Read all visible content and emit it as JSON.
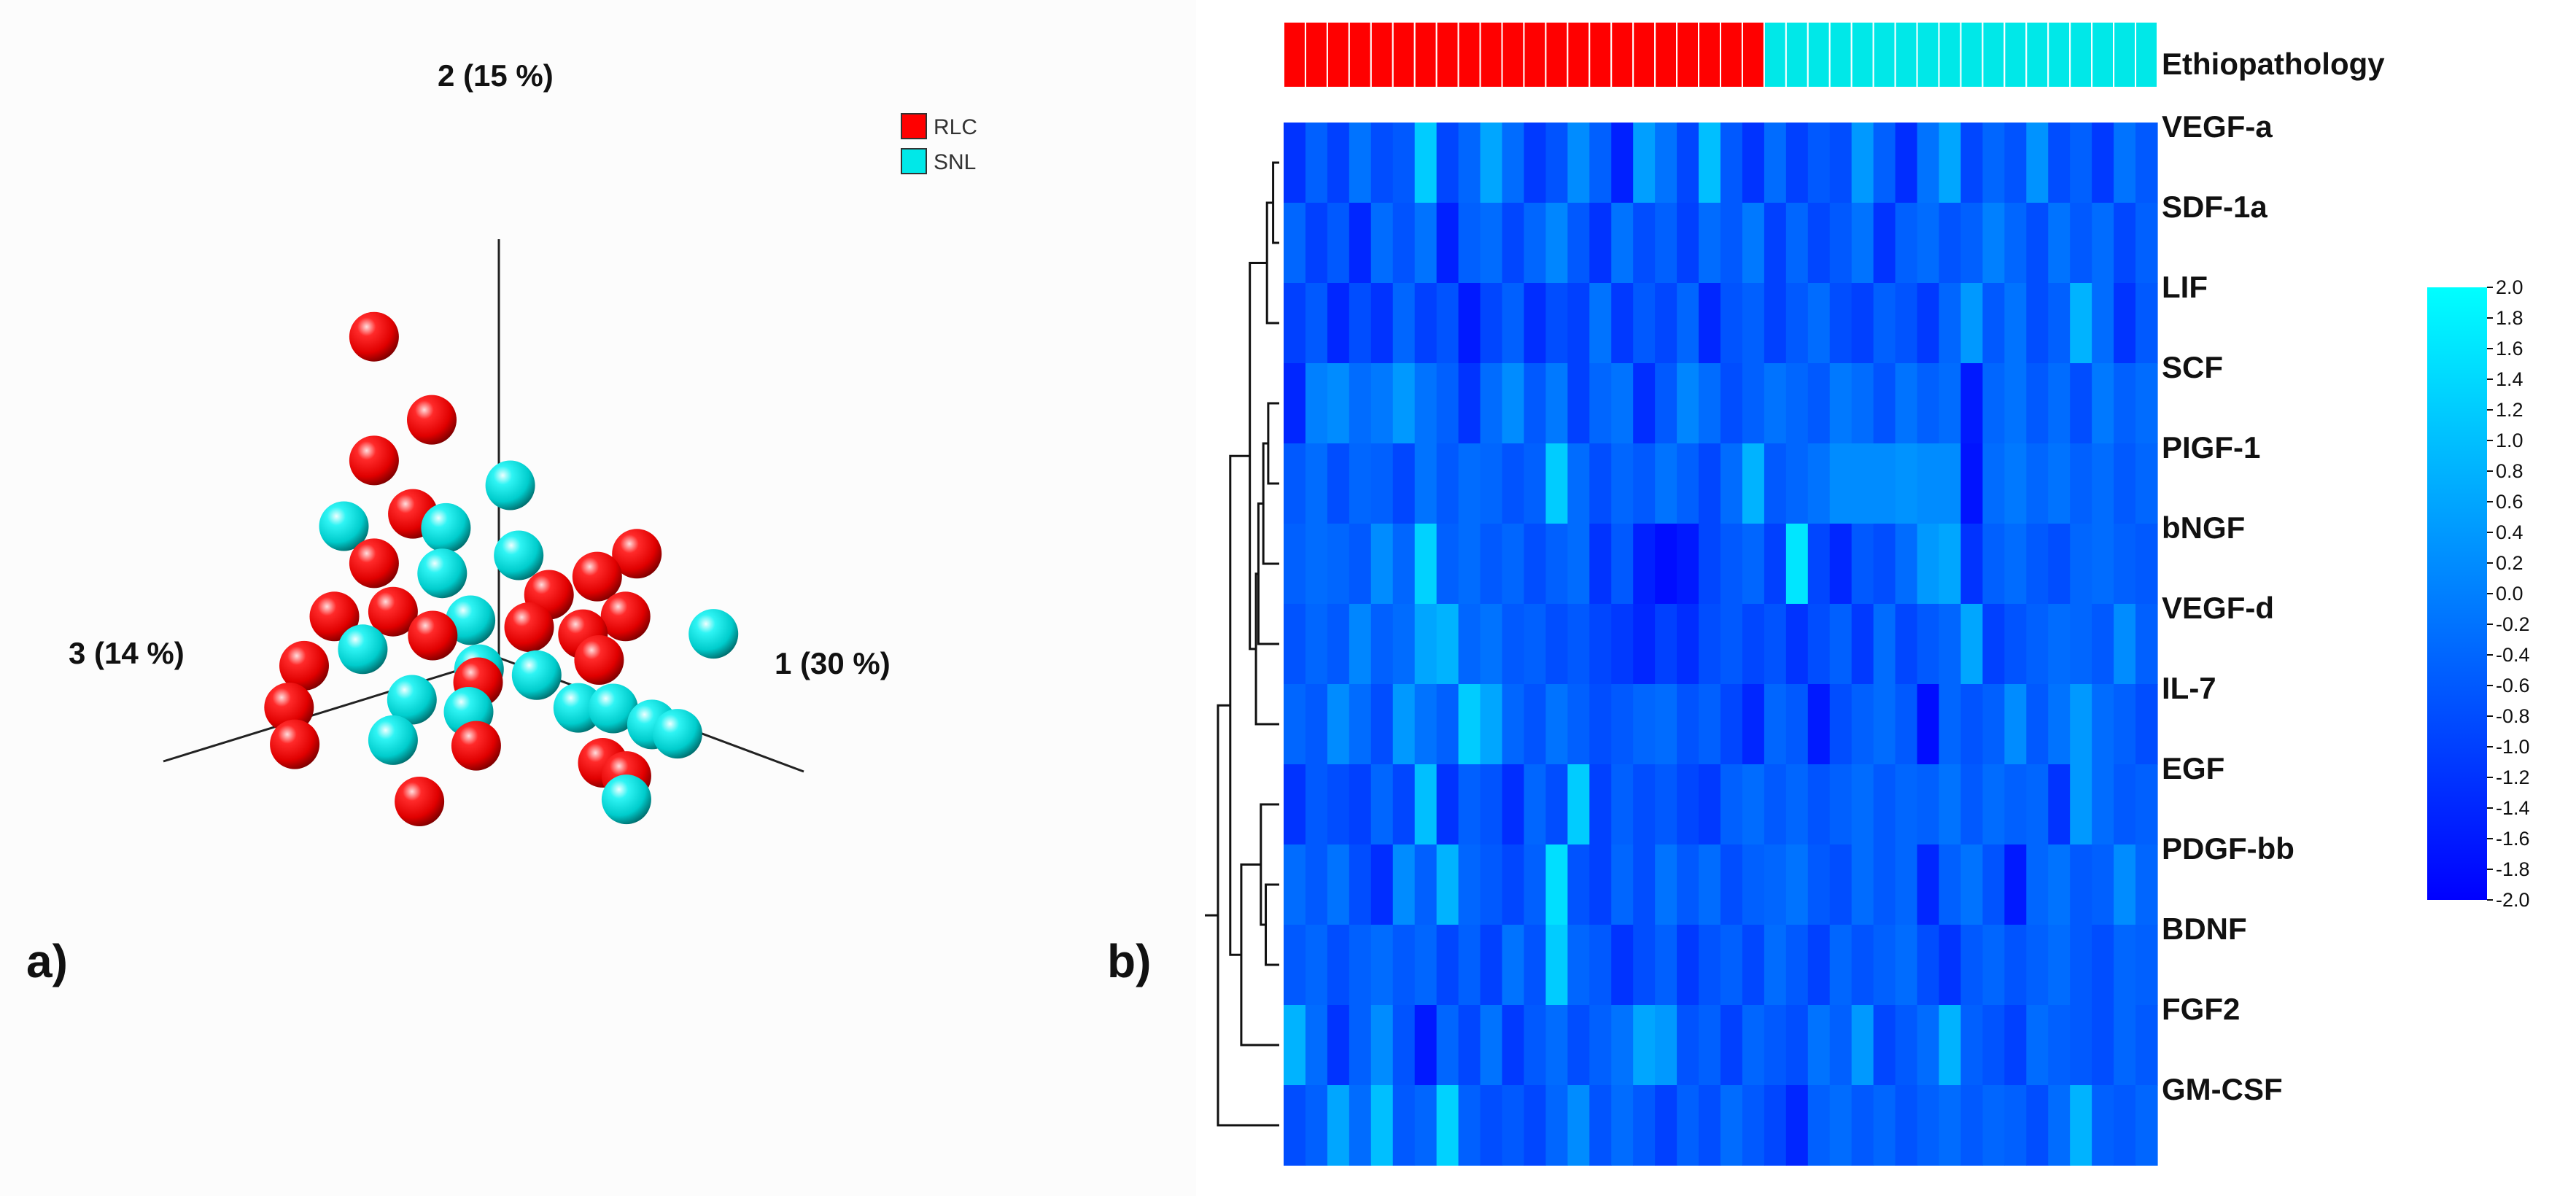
{
  "panel_labels": {
    "a": "a)",
    "b": "b)"
  },
  "colors": {
    "rlc": "#ff0000",
    "snl": "#00e8e8",
    "heat_low": "#0000ff",
    "heat_high": "#00ffff"
  },
  "chart_data": [
    {
      "type": "scatter",
      "title": "",
      "axes": {
        "axis1": "1 (30 %)",
        "axis2": "2 (15 %)",
        "axis3": "3 (14 %)"
      },
      "legend": [
        {
          "name": "RLC",
          "color": "#ff0000"
        },
        {
          "name": "SNL",
          "color": "#00e8e8"
        }
      ],
      "legend_position": "top-right",
      "points": [
        {
          "g": "RLC",
          "x": -0.55,
          "y": 1.25,
          "z": 0.1
        },
        {
          "g": "RLC",
          "x": -0.3,
          "y": 0.95,
          "z": 0.05
        },
        {
          "g": "RLC",
          "x": -0.55,
          "y": 0.72,
          "z": 0.1
        },
        {
          "g": "SNL",
          "x": -0.05,
          "y": 0.7,
          "z": -0.1
        },
        {
          "g": "RLC",
          "x": -0.4,
          "y": 0.52,
          "z": 0.05
        },
        {
          "g": "SNL",
          "x": -0.28,
          "y": 0.48,
          "z": 0.0
        },
        {
          "g": "SNL",
          "x": -0.6,
          "y": 0.45,
          "z": 0.2
        },
        {
          "g": "SNL",
          "x": 0.05,
          "y": 0.44,
          "z": -0.05
        },
        {
          "g": "RLC",
          "x": 0.4,
          "y": 0.48,
          "z": -0.3
        },
        {
          "g": "RLC",
          "x": 0.3,
          "y": 0.38,
          "z": -0.2
        },
        {
          "g": "RLC",
          "x": -0.55,
          "y": 0.28,
          "z": 0.1
        },
        {
          "g": "SNL",
          "x": -0.3,
          "y": 0.28,
          "z": 0.0
        },
        {
          "g": "RLC",
          "x": 0.1,
          "y": 0.26,
          "z": -0.15
        },
        {
          "g": "RLC",
          "x": 0.45,
          "y": 0.25,
          "z": -0.2
        },
        {
          "g": "SNL",
          "x": 0.75,
          "y": 0.22,
          "z": -0.35
        },
        {
          "g": "RLC",
          "x": -0.45,
          "y": 0.1,
          "z": 0.1
        },
        {
          "g": "SNL",
          "x": -0.15,
          "y": 0.12,
          "z": 0.0
        },
        {
          "g": "RLC",
          "x": 0.05,
          "y": 0.12,
          "z": -0.1
        },
        {
          "g": "RLC",
          "x": 0.28,
          "y": 0.14,
          "z": -0.15
        },
        {
          "g": "RLC",
          "x": 0.42,
          "y": 0.08,
          "z": -0.1
        },
        {
          "g": "RLC",
          "x": -0.65,
          "y": 0.05,
          "z": 0.2
        },
        {
          "g": "RLC",
          "x": -0.35,
          "y": 0.0,
          "z": 0.0
        },
        {
          "g": "SNL",
          "x": -0.5,
          "y": -0.05,
          "z": 0.2
        },
        {
          "g": "SNL",
          "x": -0.05,
          "y": -0.05,
          "z": 0.05
        },
        {
          "g": "RLC",
          "x": 0.0,
          "y": -0.08,
          "z": 0.1
        },
        {
          "g": "SNL",
          "x": 0.2,
          "y": -0.02,
          "z": 0.0
        },
        {
          "g": "SNL",
          "x": 0.42,
          "y": -0.1,
          "z": 0.0
        },
        {
          "g": "SNL",
          "x": 0.55,
          "y": -0.08,
          "z": -0.05
        },
        {
          "g": "SNL",
          "x": 0.7,
          "y": -0.12,
          "z": -0.1
        },
        {
          "g": "SNL",
          "x": 0.78,
          "y": -0.15,
          "z": -0.15
        },
        {
          "g": "RLC",
          "x": -0.7,
          "y": -0.15,
          "z": 0.3
        },
        {
          "g": "SNL",
          "x": -0.35,
          "y": -0.25,
          "z": 0.1
        },
        {
          "g": "SNL",
          "x": -0.05,
          "y": -0.22,
          "z": 0.1
        },
        {
          "g": "RLC",
          "x": 0.1,
          "y": -0.3,
          "z": 0.2
        },
        {
          "g": "RLC",
          "x": 0.55,
          "y": -0.3,
          "z": 0.0
        },
        {
          "g": "RLC",
          "x": 0.62,
          "y": -0.35,
          "z": -0.05
        },
        {
          "g": "RLC",
          "x": -0.78,
          "y": -0.35,
          "z": 0.3
        },
        {
          "g": "SNL",
          "x": -0.45,
          "y": -0.45,
          "z": 0.1
        },
        {
          "g": "SNL",
          "x": 0.62,
          "y": -0.45,
          "z": -0.05
        },
        {
          "g": "RLC",
          "x": -0.75,
          "y": -0.5,
          "z": 0.3
        },
        {
          "g": "RLC",
          "x": -0.2,
          "y": -0.62,
          "z": 0.2
        }
      ]
    },
    {
      "type": "heatmap",
      "annotation_label": "Ethiopathology",
      "column_groups": [
        {
          "name": "RLC",
          "count": 22,
          "color": "#ff0000"
        },
        {
          "name": "SNL",
          "count": 18,
          "color": "#00e8e8"
        }
      ],
      "rows": [
        "VEGF-a",
        "SDF-1a",
        "LIF",
        "SCF",
        "PIGF-1",
        "bNGF",
        "VEGF-d",
        "IL-7",
        "EGF",
        "PDGF-bb",
        "BDNF",
        "FGF2",
        "GM-CSF"
      ],
      "colorbar": {
        "min": -2.0,
        "max": 2.0,
        "ticks": [
          "2.0",
          "1.8",
          "1.6",
          "1.4",
          "1.2",
          "1.0",
          "0.8",
          "0.6",
          "0.4",
          "0.2",
          "0.0",
          "-0.2",
          "-0.4",
          "-0.6",
          "-0.8",
          "-1.0",
          "-1.2",
          "-1.4",
          "-1.6",
          "-1.8",
          "-2.0"
        ]
      },
      "dendrogram_merges": [
        {
          "a": 0,
          "b": 1,
          "h": 0.1
        },
        {
          "a": 13,
          "b": 2,
          "h": 0.2
        },
        {
          "a": 3,
          "b": 4,
          "h": 0.18
        },
        {
          "a": 15,
          "b": 5,
          "h": 0.26
        },
        {
          "a": 16,
          "b": 6,
          "h": 0.34
        },
        {
          "a": 17,
          "b": 7,
          "h": 0.38
        },
        {
          "a": 14,
          "b": 18,
          "h": 0.48
        },
        {
          "a": 9,
          "b": 10,
          "h": 0.22
        },
        {
          "a": 8,
          "b": 20,
          "h": 0.3
        },
        {
          "a": 21,
          "b": 11,
          "h": 0.62
        },
        {
          "a": 19,
          "b": 22,
          "h": 0.8
        },
        {
          "a": 23,
          "b": 12,
          "h": 1.0
        }
      ],
      "values": [
        [
          -1.2,
          -0.5,
          -1.0,
          -0.2,
          -0.8,
          -0.6,
          1.2,
          -0.9,
          -0.4,
          0.6,
          -0.3,
          -1.1,
          -0.7,
          0.2,
          -0.5,
          -1.5,
          0.5,
          -0.2,
          -0.9,
          1.0,
          -0.6,
          -1.2,
          -0.3,
          -1.0,
          -0.6,
          -0.8,
          0.4,
          -0.5,
          -1.3,
          -0.2,
          0.6,
          -0.9,
          -0.4,
          -0.7,
          0.3,
          -0.8,
          -0.5,
          -1.1,
          -0.2,
          -0.6
        ],
        [
          -0.4,
          -1.0,
          -0.6,
          -1.4,
          -0.3,
          -0.7,
          -0.2,
          -1.5,
          -0.5,
          -0.3,
          -0.9,
          -0.4,
          0.1,
          -0.6,
          -1.2,
          -0.2,
          -0.8,
          -0.5,
          -1.0,
          -0.3,
          -0.6,
          -0.1,
          -1.0,
          -0.4,
          -0.9,
          -0.6,
          -0.2,
          -1.2,
          -0.5,
          -0.3,
          -0.7,
          -0.5,
          0.0,
          -0.4,
          -0.8,
          -0.2,
          -0.6,
          -0.3,
          -0.9,
          -0.5
        ],
        [
          -1.0,
          -0.6,
          -1.4,
          -0.8,
          -1.2,
          -0.4,
          -1.0,
          -0.7,
          -1.6,
          -0.9,
          -0.5,
          -1.3,
          -0.8,
          -1.0,
          -0.2,
          -1.1,
          -0.6,
          -0.9,
          -0.4,
          -1.4,
          -0.7,
          -0.5,
          -1.0,
          -0.6,
          -0.3,
          -0.8,
          -1.0,
          -0.5,
          -0.7,
          -1.1,
          -0.4,
          0.4,
          -0.6,
          -0.2,
          -0.8,
          -0.5,
          0.8,
          -0.3,
          -1.2,
          -0.6
        ],
        [
          -1.4,
          0.0,
          0.2,
          -0.3,
          -0.1,
          0.4,
          -0.2,
          -0.5,
          -1.2,
          -0.3,
          0.2,
          -0.6,
          -0.1,
          -1.0,
          -0.4,
          -0.2,
          -1.3,
          -0.6,
          0.1,
          -0.3,
          -0.8,
          -0.5,
          -0.2,
          -0.4,
          -0.6,
          -0.1,
          -0.3,
          -0.7,
          -0.2,
          -0.5,
          -0.3,
          -1.6,
          -0.4,
          -0.2,
          -0.6,
          -0.3,
          -0.8,
          -0.1,
          -0.5,
          -0.3
        ],
        [
          -0.6,
          -0.3,
          -0.8,
          -0.4,
          -0.5,
          -0.9,
          -0.2,
          -0.6,
          -0.3,
          -0.4,
          -0.7,
          -0.5,
          1.2,
          -0.3,
          -0.8,
          -0.4,
          -0.6,
          -0.2,
          -0.5,
          -0.9,
          -0.3,
          0.8,
          -0.6,
          -0.4,
          -0.2,
          0.2,
          0.2,
          0.2,
          0.3,
          0.2,
          0.2,
          -1.7,
          -0.3,
          -0.1,
          -0.4,
          -0.2,
          -0.5,
          -0.3,
          -0.6,
          -0.4
        ],
        [
          -0.5,
          -0.3,
          -0.4,
          -0.6,
          0.2,
          -0.4,
          1.3,
          -0.5,
          -0.3,
          -0.6,
          -0.4,
          -0.8,
          -0.5,
          -0.3,
          -1.2,
          -0.6,
          -1.5,
          -1.8,
          -1.6,
          -0.9,
          -0.6,
          -0.4,
          -1.0,
          1.6,
          -0.9,
          -1.4,
          -0.6,
          -0.8,
          -0.3,
          0.4,
          0.6,
          -1.2,
          -0.5,
          -0.3,
          -0.6,
          -0.8,
          -0.4,
          -0.3,
          -0.5,
          -0.6
        ],
        [
          -0.7,
          -0.4,
          -0.6,
          0.1,
          -0.5,
          -0.3,
          0.6,
          0.8,
          -0.4,
          -0.2,
          -0.6,
          -0.5,
          -0.8,
          -0.6,
          -0.9,
          -1.1,
          -1.4,
          -1.0,
          -1.3,
          -0.8,
          -0.6,
          -0.9,
          -0.7,
          -1.2,
          -0.8,
          -0.5,
          -1.1,
          -0.3,
          -0.9,
          -0.6,
          -0.4,
          0.6,
          -1.0,
          -0.7,
          -0.5,
          -0.3,
          -0.4,
          -0.6,
          0.2,
          -0.5
        ],
        [
          -0.4,
          -0.6,
          0.2,
          -0.3,
          -0.8,
          0.4,
          -0.2,
          -0.5,
          1.2,
          0.6,
          -0.4,
          -0.7,
          -0.2,
          -0.5,
          -0.8,
          -0.6,
          -0.4,
          -0.3,
          -0.7,
          -0.5,
          -0.9,
          -1.4,
          -0.4,
          -0.6,
          -1.6,
          -0.8,
          -0.5,
          -0.3,
          -0.6,
          -1.8,
          -0.4,
          -0.7,
          -0.5,
          0.2,
          -0.6,
          -0.2,
          0.4,
          -0.3,
          -0.5,
          -0.8
        ],
        [
          -1.2,
          -0.6,
          -0.8,
          -1.0,
          -0.4,
          -0.9,
          1.0,
          -1.2,
          -0.5,
          -0.7,
          -1.3,
          -0.4,
          -0.8,
          1.2,
          -1.0,
          -0.5,
          -0.8,
          -0.6,
          -0.9,
          -1.1,
          -0.5,
          -0.3,
          -0.6,
          -0.4,
          -0.7,
          -0.5,
          -0.3,
          -0.6,
          -0.4,
          -0.5,
          -0.2,
          -0.6,
          -0.3,
          -0.5,
          -0.4,
          -1.2,
          0.4,
          -0.3,
          -0.6,
          -0.5
        ],
        [
          -0.3,
          -0.6,
          -0.2,
          -0.8,
          -1.3,
          0.2,
          -0.5,
          0.8,
          -0.4,
          -0.6,
          -0.9,
          -0.5,
          1.5,
          -0.7,
          -1.0,
          -0.4,
          -0.8,
          -0.2,
          -0.6,
          -0.3,
          -0.8,
          -0.5,
          -0.4,
          -0.2,
          -0.6,
          -0.8,
          -0.3,
          -0.6,
          -0.4,
          -1.4,
          -0.5,
          -0.2,
          -0.7,
          -1.6,
          -0.4,
          -0.2,
          -0.6,
          -0.5,
          0.2,
          -0.4
        ],
        [
          -0.6,
          -0.4,
          -0.8,
          -0.5,
          -0.3,
          -0.6,
          -0.4,
          -0.9,
          -0.5,
          -1.0,
          -0.2,
          -0.7,
          1.2,
          -0.4,
          -0.6,
          -1.2,
          -0.8,
          -0.5,
          -1.1,
          -0.7,
          -0.5,
          -0.9,
          -0.3,
          -0.6,
          -1.0,
          -0.4,
          -0.7,
          -0.5,
          -0.3,
          -0.8,
          -1.2,
          -0.6,
          -0.4,
          -0.7,
          -0.5,
          -0.3,
          -0.6,
          -0.8,
          -0.4,
          -0.5
        ],
        [
          0.8,
          -0.3,
          -1.2,
          -0.5,
          0.2,
          -0.7,
          -1.6,
          -0.4,
          -0.9,
          -0.2,
          -1.1,
          -0.6,
          -0.3,
          -0.8,
          -0.5,
          -0.2,
          0.6,
          0.4,
          -0.7,
          -0.5,
          -1.0,
          -0.4,
          -0.6,
          -0.8,
          -0.2,
          -0.5,
          0.4,
          -0.9,
          -0.6,
          -0.3,
          0.8,
          -0.5,
          -0.7,
          -1.0,
          -0.3,
          -0.5,
          -0.6,
          -0.8,
          -0.4,
          -0.6
        ],
        [
          -0.8,
          -0.5,
          0.6,
          -0.3,
          1.0,
          -0.6,
          -0.4,
          1.3,
          -0.5,
          -0.8,
          -0.6,
          -0.9,
          -0.4,
          0.2,
          -0.7,
          -0.3,
          -0.6,
          -1.0,
          -0.5,
          -0.8,
          -0.3,
          -0.6,
          -0.9,
          -1.4,
          -0.5,
          -0.3,
          -0.6,
          -0.4,
          -0.7,
          -0.5,
          -0.3,
          -0.6,
          -0.4,
          -0.5,
          -0.8,
          -0.3,
          0.8,
          -0.5,
          -0.6,
          -0.4
        ]
      ]
    }
  ]
}
